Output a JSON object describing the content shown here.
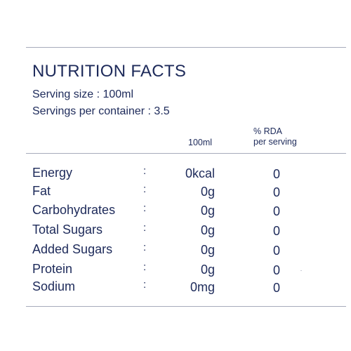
{
  "title": "NUTRITION FACTS",
  "serving_size": "Serving size : 100ml",
  "servings_per_container": "Servings per container : 3.5",
  "columns": {
    "amount": "100ml",
    "rda_line1": "% RDA",
    "rda_line2": "per serving"
  },
  "separator": ":",
  "rows": [
    {
      "name": "Energy",
      "amount": "0kcal",
      "rda": "0"
    },
    {
      "name": "Fat",
      "amount": "0g",
      "rda": "0"
    },
    {
      "name": "Carbohydrates",
      "amount": "0g",
      "rda": "0"
    },
    {
      "name": "Total Sugars",
      "amount": "0g",
      "rda": "0"
    },
    {
      "name": "Added Sugars",
      "amount": "0g",
      "rda": "0"
    },
    {
      "name": "Protein",
      "amount": "0g",
      "rda": "0"
    },
    {
      "name": "Sodium",
      "amount": "0mg",
      "rda": "0"
    }
  ]
}
